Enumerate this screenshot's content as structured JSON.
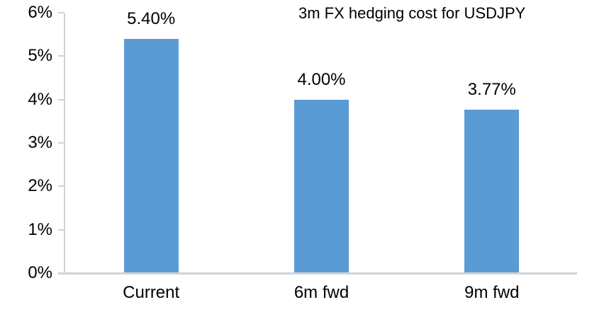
{
  "chart_data": {
    "type": "bar",
    "title": "3m FX hedging cost for USDJPY",
    "categories": [
      "Current",
      "6m fwd",
      "9m fwd"
    ],
    "values": [
      5.4,
      4.0,
      3.77
    ],
    "value_labels": [
      "5.40%",
      "4.00%",
      "3.77%"
    ],
    "y_ticks": [
      "0%",
      "1%",
      "2%",
      "3%",
      "4%",
      "5%",
      "6%"
    ],
    "ylim": [
      0,
      6
    ],
    "xlabel": "",
    "ylabel": "",
    "grid": false,
    "legend": "none",
    "bar_color": "#5B9BD5",
    "axis_color": "#d3d3d3",
    "text_color": "#000000"
  }
}
